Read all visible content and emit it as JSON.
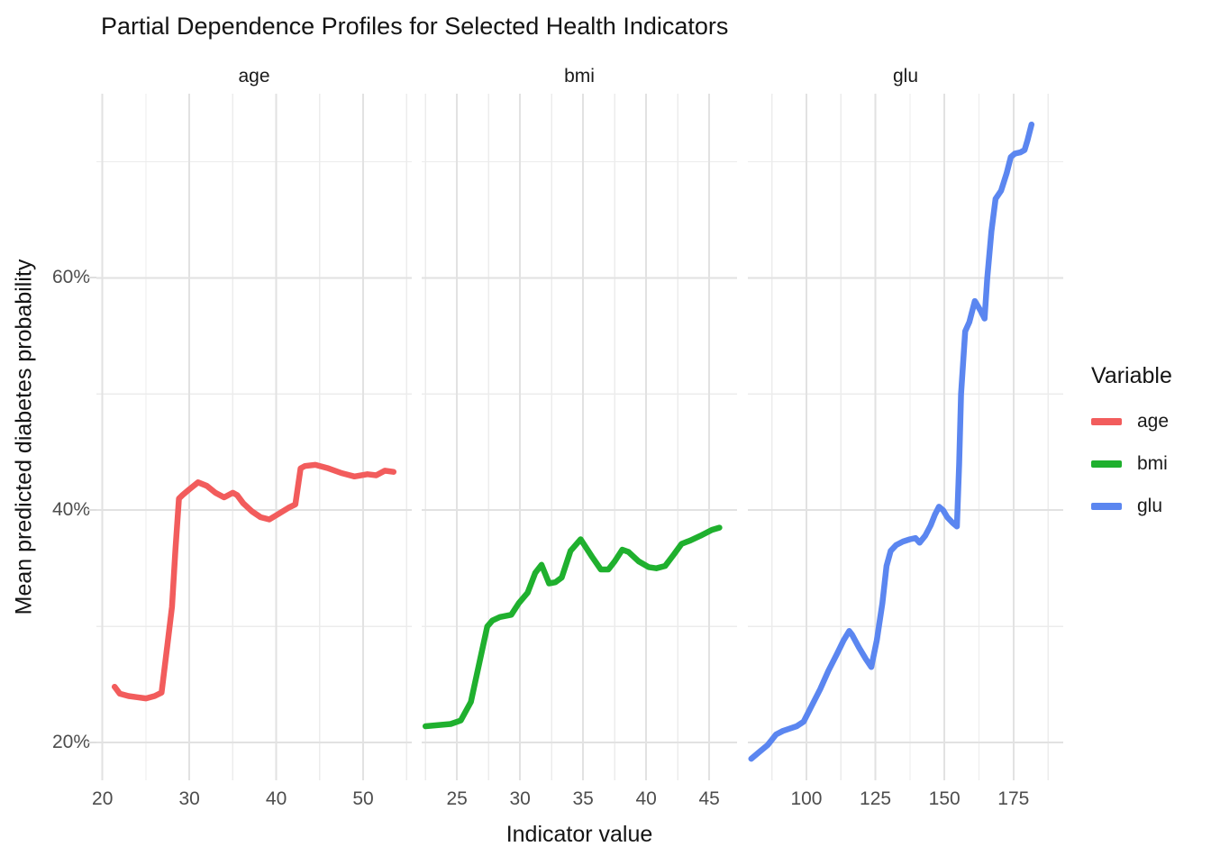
{
  "title": "Partial Dependence Profiles for Selected Health Indicators",
  "axes": {
    "x_title": "Indicator value",
    "y_title": "Mean predicted diabetes probability"
  },
  "legend": {
    "title": "Variable",
    "entries": [
      {
        "label": "age",
        "color": "#F25C5C"
      },
      {
        "label": "bmi",
        "color": "#1FB02E"
      },
      {
        "label": "glu",
        "color": "#5B86F0"
      }
    ]
  },
  "colors": {
    "background": "#ffffff",
    "grid_major": "#e2e2e2",
    "grid_minor": "#ececec",
    "tick_text": "#4d4d4d"
  },
  "chart_data": {
    "type": "line",
    "title": "Partial Dependence Profiles for Selected Health Indicators",
    "xlabel": "Indicator value",
    "ylabel": "Mean predicted diabetes probability",
    "grid": true,
    "legend_position": "right",
    "y_axis": {
      "unit": "%",
      "range": [
        16.75,
        75.85
      ],
      "major_ticks": [
        20,
        40,
        60
      ],
      "tick_labels": [
        "20%",
        "40%",
        "60%"
      ],
      "minor_ticks": [
        30,
        50,
        70
      ]
    },
    "facets": [
      {
        "name": "age",
        "color": "#F25C5C",
        "x_domain": [
          19.3,
          55.6
        ],
        "x_major": [
          20,
          30,
          40,
          50
        ],
        "x_tick_labels": [
          "20",
          "30",
          "40",
          "50"
        ],
        "x_minor": [
          25,
          35,
          45,
          55
        ],
        "x": [
          21.4,
          22,
          23,
          24,
          25,
          26,
          26.8,
          27.5,
          28,
          28.4,
          28.8,
          29.2,
          30,
          31,
          32,
          33,
          34,
          35,
          35.5,
          36.2,
          37.2,
          38.2,
          39.2,
          40.3,
          41.4,
          42.2,
          42.8,
          43.3,
          44.5,
          46,
          47.5,
          49,
          50.5,
          51.5,
          52.5,
          53.5
        ],
        "y": [
          24.8,
          24.2,
          24.0,
          23.9,
          23.8,
          24.0,
          24.3,
          28.6,
          31.7,
          36.6,
          41.0,
          41.3,
          41.8,
          42.4,
          42.1,
          41.5,
          41.1,
          41.5,
          41.3,
          40.6,
          39.9,
          39.4,
          39.2,
          39.7,
          40.2,
          40.5,
          43.6,
          43.8,
          43.9,
          43.6,
          43.2,
          42.9,
          43.1,
          43.0,
          43.4,
          43.3
        ]
      },
      {
        "name": "bmi",
        "color": "#1FB02E",
        "x_domain": [
          22.2,
          47.2
        ],
        "x_major": [
          25,
          30,
          35,
          40,
          45
        ],
        "x_tick_labels": [
          "25",
          "30",
          "35",
          "40",
          "45"
        ],
        "x_minor": [
          22.5,
          27.5,
          32.5,
          37.5,
          42.5
        ],
        "x": [
          22.5,
          23.5,
          24.5,
          25.3,
          26.1,
          26.8,
          27.4,
          27.8,
          28.4,
          29.3,
          29.9,
          30.6,
          31.2,
          31.7,
          32.3,
          32.8,
          33.3,
          34,
          34.8,
          35.7,
          36.4,
          37,
          37.5,
          38.1,
          38.6,
          39.4,
          40.2,
          40.8,
          41.5,
          42.2,
          42.8,
          43.5,
          44.3,
          45.2,
          45.8
        ],
        "y": [
          21.4,
          21.5,
          21.6,
          21.9,
          23.5,
          27.0,
          30.0,
          30.5,
          30.8,
          31.0,
          32.0,
          32.9,
          34.6,
          35.3,
          33.7,
          33.8,
          34.2,
          36.5,
          37.5,
          36.0,
          34.9,
          34.9,
          35.6,
          36.6,
          36.4,
          35.6,
          35.1,
          35.0,
          35.2,
          36.2,
          37.1,
          37.4,
          37.8,
          38.3,
          38.5
        ]
      },
      {
        "name": "glu",
        "color": "#5B86F0",
        "x_domain": [
          78.8,
          193.0
        ],
        "x_major": [
          100,
          125,
          150,
          175
        ],
        "x_tick_labels": [
          "100",
          "125",
          "150",
          "175"
        ],
        "x_minor": [
          87.5,
          112.5,
          137.5,
          162.5,
          187.5
        ],
        "x": [
          80,
          83,
          86,
          89,
          91.5,
          94,
          96.5,
          99,
          102,
          105,
          108,
          111,
          113.5,
          115.5,
          116.5,
          119,
          121.5,
          123.5,
          125.5,
          127.5,
          129,
          130.5,
          132.5,
          135,
          137.5,
          139.5,
          141,
          143,
          145,
          146.5,
          148,
          149.5,
          151,
          153,
          154.5,
          155.3,
          156,
          157.5,
          159,
          161,
          163,
          164.5,
          165.5,
          167,
          168.5,
          170.5,
          172.5,
          174,
          175.5,
          177.5,
          179,
          180,
          181.5
        ],
        "y": [
          18.6,
          19.2,
          19.8,
          20.7,
          21.0,
          21.2,
          21.4,
          21.8,
          23.2,
          24.6,
          26.2,
          27.6,
          28.8,
          29.6,
          29.3,
          28.2,
          27.2,
          26.5,
          28.8,
          32.0,
          35.2,
          36.5,
          37.0,
          37.3,
          37.5,
          37.6,
          37.2,
          37.8,
          38.7,
          39.6,
          40.3,
          40.0,
          39.4,
          38.9,
          38.6,
          44.0,
          50.0,
          55.4,
          56.2,
          58.0,
          57.2,
          56.5,
          60.0,
          64.0,
          66.8,
          67.5,
          69.0,
          70.4,
          70.7,
          70.8,
          71.0,
          71.8,
          73.2
        ]
      }
    ]
  }
}
